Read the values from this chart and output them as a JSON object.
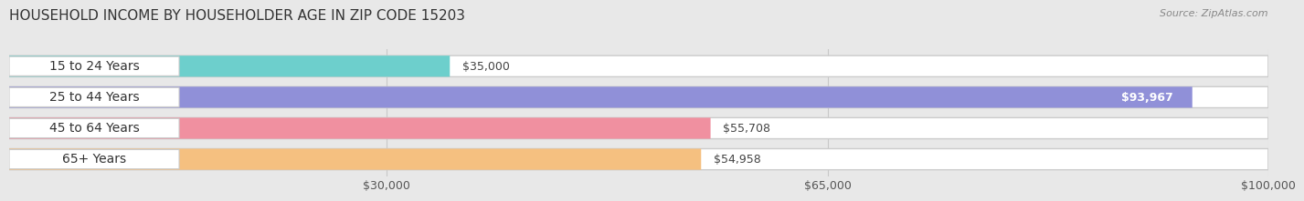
{
  "title": "HOUSEHOLD INCOME BY HOUSEHOLDER AGE IN ZIP CODE 15203",
  "source": "Source: ZipAtlas.com",
  "categories": [
    "15 to 24 Years",
    "25 to 44 Years",
    "45 to 64 Years",
    "65+ Years"
  ],
  "values": [
    35000,
    93967,
    55708,
    54958
  ],
  "bar_colors": [
    "#6dcfcc",
    "#9090d8",
    "#f090a0",
    "#f5c080"
  ],
  "value_labels": [
    "$35,000",
    "$93,967",
    "$55,708",
    "$54,958"
  ],
  "xlim": [
    0,
    100000
  ],
  "xticks": [
    30000,
    65000,
    100000
  ],
  "xtick_labels": [
    "$30,000",
    "$65,000",
    "$100,000"
  ],
  "background_color": "#e8e8e8",
  "title_fontsize": 11,
  "tick_fontsize": 9,
  "label_fontsize": 10,
  "value_fontsize": 9
}
